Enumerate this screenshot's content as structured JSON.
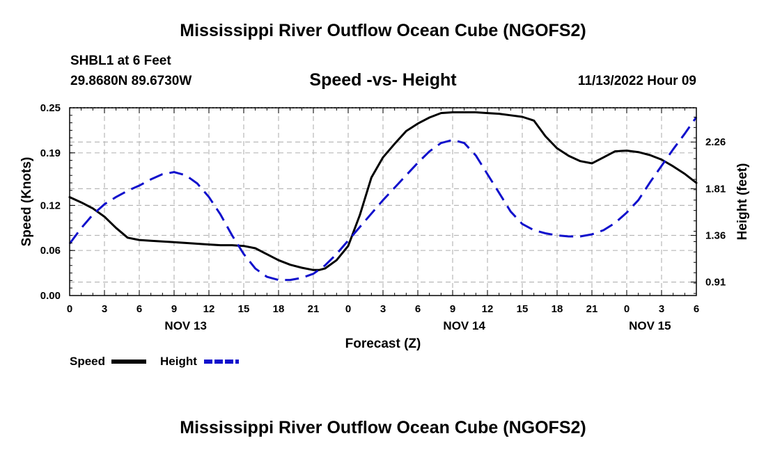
{
  "page": {
    "title": "Mississippi River Outflow Ocean Cube (NGOFS2)",
    "footer_title": "Mississippi River Outflow Ocean Cube (NGOFS2)",
    "station": "SHBL1 at 6 Feet",
    "location": "29.8680N  89.6730W",
    "chart_heading": "Speed -vs- Height",
    "run_time": "11/13/2022 Hour 09"
  },
  "chart_data": {
    "type": "line",
    "title": "Speed -vs- Height",
    "xlabel": "Forecast (Z)",
    "ylabel": "Speed (Knots)",
    "y2label": "Height (feet)",
    "x_range_hours": [
      0,
      54
    ],
    "x_tick_hours": [
      0,
      3,
      6,
      9,
      12,
      15,
      18,
      21,
      24,
      27,
      30,
      33,
      36,
      39,
      42,
      45,
      48,
      51,
      54
    ],
    "x_tick_labels": [
      "0",
      "3",
      "6",
      "9",
      "12",
      "15",
      "18",
      "21",
      "0",
      "3",
      "6",
      "9",
      "12",
      "15",
      "18",
      "21",
      "0",
      "3",
      "6"
    ],
    "date_labels": [
      {
        "hour": 10,
        "label": "NOV 13"
      },
      {
        "hour": 34,
        "label": "NOV 14"
      },
      {
        "hour": 50,
        "label": "NOV 15"
      }
    ],
    "ylim": [
      0,
      0.25
    ],
    "y_ticks": [
      0,
      0.06,
      0.12,
      0.19,
      0.25
    ],
    "y_tick_labels": [
      "0.00",
      "0.06",
      "0.12",
      "0.19",
      "0.25"
    ],
    "y2lim": [
      0.78,
      2.59
    ],
    "y2_ticks": [
      0.91,
      1.36,
      1.81,
      2.26
    ],
    "y2_tick_labels": [
      "0.91",
      "1.36",
      "1.81",
      "2.26"
    ],
    "series": [
      {
        "name": "Speed",
        "axis": "left",
        "color": "#000000",
        "dash": "solid",
        "x": [
          0,
          1,
          2,
          3,
          4,
          5,
          6,
          7,
          8,
          9,
          10,
          11,
          12,
          13,
          14,
          15,
          16,
          17,
          18,
          19,
          20,
          21,
          21.5,
          22,
          23,
          24,
          25,
          26,
          27,
          28,
          29,
          30,
          31,
          32,
          33,
          34,
          35,
          36,
          37,
          38,
          39,
          40,
          41,
          42,
          43,
          44,
          45,
          46,
          47,
          48,
          49,
          50,
          51,
          52,
          53,
          54
        ],
        "values": [
          0.131,
          0.124,
          0.116,
          0.105,
          0.09,
          0.077,
          0.074,
          0.073,
          0.072,
          0.071,
          0.07,
          0.069,
          0.068,
          0.067,
          0.067,
          0.066,
          0.063,
          0.055,
          0.047,
          0.041,
          0.037,
          0.034,
          0.034,
          0.036,
          0.047,
          0.066,
          0.107,
          0.157,
          0.184,
          0.202,
          0.219,
          0.229,
          0.237,
          0.243,
          0.244,
          0.244,
          0.244,
          0.243,
          0.242,
          0.24,
          0.238,
          0.233,
          0.212,
          0.196,
          0.186,
          0.179,
          0.176,
          0.184,
          0.192,
          0.193,
          0.191,
          0.187,
          0.181,
          0.172,
          0.162,
          0.15
        ]
      },
      {
        "name": "Height",
        "axis": "right",
        "color": "#1010cc",
        "dash": "dashed",
        "x": [
          0,
          1,
          2,
          3,
          4,
          5,
          6,
          7,
          8,
          9,
          10,
          11,
          12,
          13,
          14,
          15,
          16,
          17,
          18,
          19,
          20,
          21,
          22,
          23,
          24,
          25,
          26,
          27,
          28,
          29,
          30,
          31,
          32,
          33,
          34,
          35,
          36,
          37,
          38,
          39,
          40,
          41,
          42,
          43,
          44,
          45,
          46,
          47,
          48,
          49,
          50,
          51,
          52,
          53,
          54
        ],
        "values": [
          1.28,
          1.43,
          1.56,
          1.66,
          1.73,
          1.79,
          1.84,
          1.9,
          1.95,
          1.97,
          1.94,
          1.86,
          1.73,
          1.56,
          1.36,
          1.18,
          1.04,
          0.96,
          0.93,
          0.93,
          0.95,
          0.99,
          1.07,
          1.18,
          1.31,
          1.44,
          1.57,
          1.7,
          1.82,
          1.94,
          2.06,
          2.17,
          2.25,
          2.28,
          2.25,
          2.13,
          1.95,
          1.77,
          1.59,
          1.47,
          1.41,
          1.38,
          1.36,
          1.35,
          1.35,
          1.37,
          1.41,
          1.48,
          1.58,
          1.7,
          1.87,
          2.03,
          2.19,
          2.34,
          2.5
        ]
      }
    ],
    "legend": [
      {
        "label": "Speed",
        "color": "#000000",
        "dash": "solid"
      },
      {
        "label": "Height",
        "color": "#1010cc",
        "dash": "dashed"
      }
    ],
    "grid": true,
    "legend_position": "bottom-left"
  }
}
